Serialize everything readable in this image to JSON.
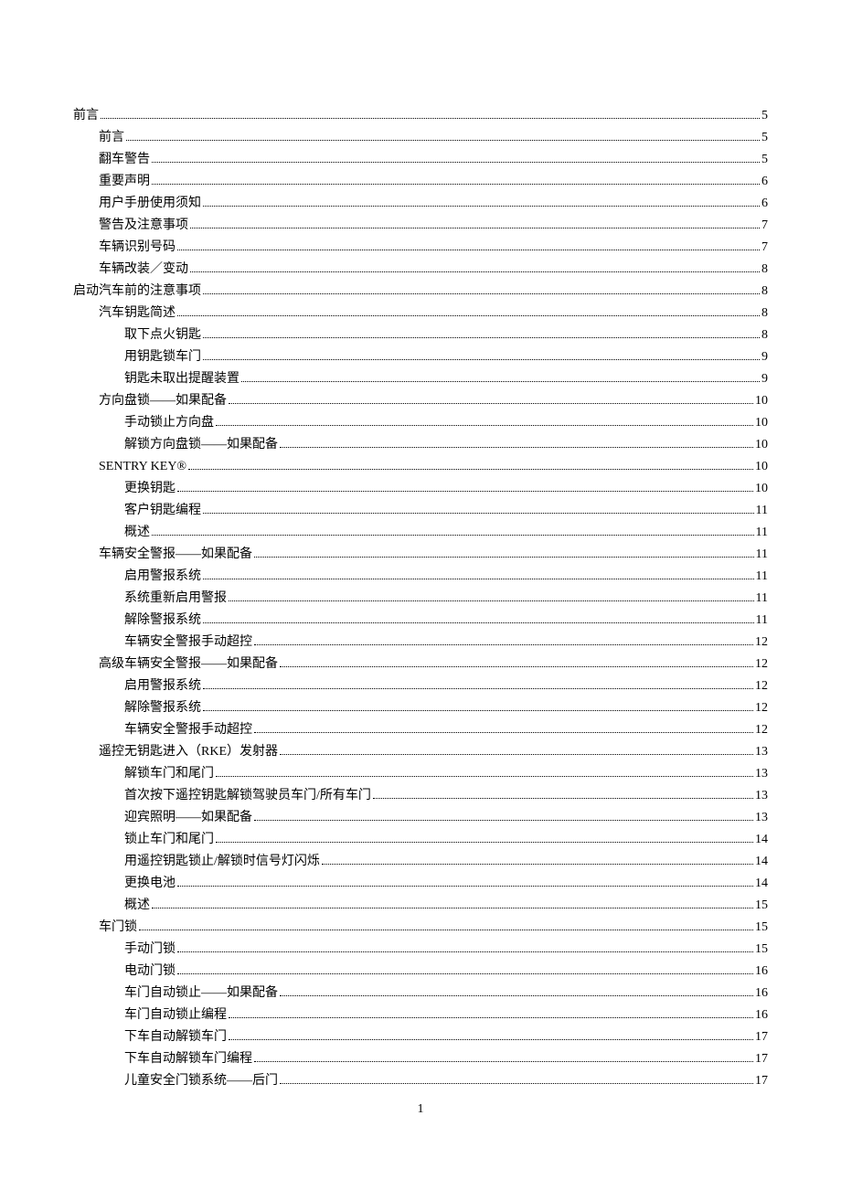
{
  "page_number": "1",
  "toc": [
    {
      "label": "前言",
      "page": "5",
      "indent": 0
    },
    {
      "label": "前言",
      "page": "5",
      "indent": 1
    },
    {
      "label": "翻车警告",
      "page": "5",
      "indent": 1
    },
    {
      "label": "重要声明",
      "page": "6",
      "indent": 1
    },
    {
      "label": "用户手册使用须知",
      "page": "6",
      "indent": 1
    },
    {
      "label": "警告及注意事项",
      "page": "7",
      "indent": 1
    },
    {
      "label": "车辆识别号码",
      "page": "7",
      "indent": 1
    },
    {
      "label": "车辆改装／变动",
      "page": "8",
      "indent": 1
    },
    {
      "label": "启动汽车前的注意事项",
      "page": "8",
      "indent": 0
    },
    {
      "label": "汽车钥匙简述",
      "page": "8",
      "indent": 1
    },
    {
      "label": "取下点火钥匙",
      "page": "8",
      "indent": 2
    },
    {
      "label": "用钥匙锁车门",
      "page": "9",
      "indent": 2
    },
    {
      "label": "钥匙未取出提醒装置",
      "page": "9",
      "indent": 2
    },
    {
      "label": "方向盘锁——如果配备",
      "page": "10",
      "indent": 1
    },
    {
      "label": "手动锁止方向盘",
      "page": "10",
      "indent": 2
    },
    {
      "label": "解锁方向盘锁——如果配备",
      "page": "10",
      "indent": 2
    },
    {
      "label": "SENTRY KEY®",
      "page": "10",
      "indent": 1
    },
    {
      "label": "更换钥匙",
      "page": "10",
      "indent": 2
    },
    {
      "label": "客户钥匙编程",
      "page": "11",
      "indent": 2
    },
    {
      "label": "概述",
      "page": "11",
      "indent": 2
    },
    {
      "label": "车辆安全警报——如果配备",
      "page": "11",
      "indent": 1
    },
    {
      "label": "启用警报系统",
      "page": "11",
      "indent": 2
    },
    {
      "label": "系统重新启用警报",
      "page": "11",
      "indent": 2
    },
    {
      "label": "解除警报系统",
      "page": "11",
      "indent": 2
    },
    {
      "label": "车辆安全警报手动超控",
      "page": "12",
      "indent": 2
    },
    {
      "label": "高级车辆安全警报——如果配备",
      "page": "12",
      "indent": 1
    },
    {
      "label": "启用警报系统",
      "page": "12",
      "indent": 2
    },
    {
      "label": "解除警报系统",
      "page": "12",
      "indent": 2
    },
    {
      "label": "车辆安全警报手动超控",
      "page": "12",
      "indent": 2
    },
    {
      "label": "遥控无钥匙进入（RKE）发射器",
      "page": "13",
      "indent": 1
    },
    {
      "label": "解锁车门和尾门",
      "page": "13",
      "indent": 2
    },
    {
      "label": "首次按下遥控钥匙解锁驾驶员车门/所有车门",
      "page": "13",
      "indent": 2
    },
    {
      "label": "迎宾照明——如果配备",
      "page": "13",
      "indent": 2
    },
    {
      "label": "锁止车门和尾门",
      "page": "14",
      "indent": 2
    },
    {
      "label": "用遥控钥匙锁止/解锁时信号灯闪烁",
      "page": "14",
      "indent": 2
    },
    {
      "label": "更换电池",
      "page": "14",
      "indent": 2
    },
    {
      "label": "概述",
      "page": "15",
      "indent": 2
    },
    {
      "label": "车门锁",
      "page": "15",
      "indent": 1
    },
    {
      "label": "手动门锁",
      "page": "15",
      "indent": 2
    },
    {
      "label": "电动门锁",
      "page": "16",
      "indent": 2
    },
    {
      "label": "车门自动锁止——如果配备",
      "page": "16",
      "indent": 2
    },
    {
      "label": "车门自动锁止编程",
      "page": "16",
      "indent": 2
    },
    {
      "label": "下车自动解锁车门",
      "page": "17",
      "indent": 2
    },
    {
      "label": "下车自动解锁车门编程",
      "page": "17",
      "indent": 2
    },
    {
      "label": "儿童安全门锁系统——后门",
      "page": "17",
      "indent": 2
    }
  ]
}
